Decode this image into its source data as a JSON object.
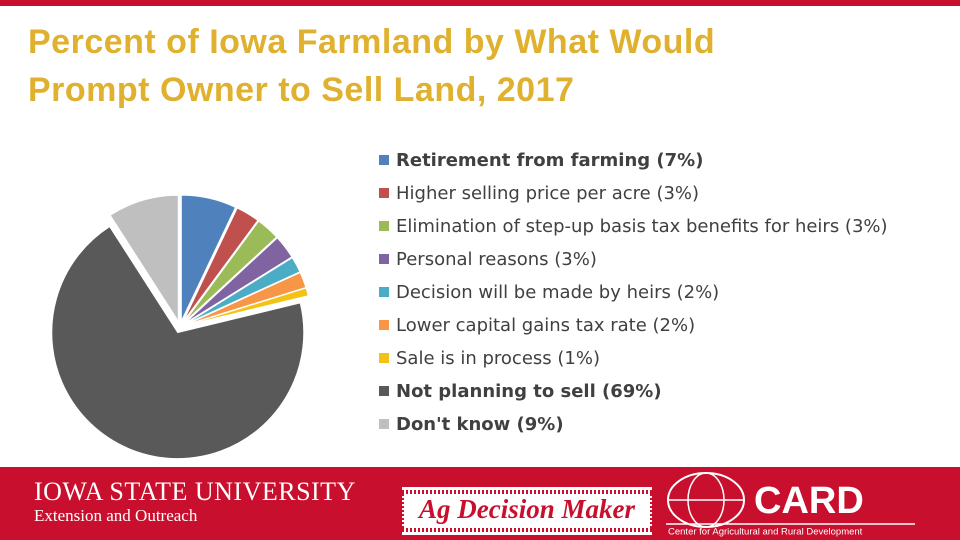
{
  "chart_data": {
    "type": "pie",
    "title": "Percent of Iowa Farmland by What Would Prompt Owner to Sell Land, 2017",
    "categories": [
      "Retirement from farming (7%)",
      "Higher selling price per acre (3%)",
      "Elimination of step-up basis tax benefits for heirs (3%)",
      "Personal reasons (3%)",
      "Decision will be made by heirs (2%)",
      "Lower capital gains tax rate (2%)",
      "Sale is in process (1%)",
      "Not planning to sell (69%)",
      "Don't know (9%)"
    ],
    "values": [
      7,
      3,
      3,
      3,
      2,
      2,
      1,
      69,
      9
    ],
    "colors": [
      "#4f81bd",
      "#c0504d",
      "#9bbb59",
      "#8064a2",
      "#4bacc6",
      "#f79646",
      "#f2c314",
      "#595959",
      "#bfbfbf"
    ],
    "legend": "right"
  },
  "footer": {
    "university": "Iowa State University",
    "extension": "Extension and Outreach",
    "program": "Ag Decision Maker",
    "card": "CARD",
    "card_full": "Center for Agricultural and Rural Development"
  }
}
